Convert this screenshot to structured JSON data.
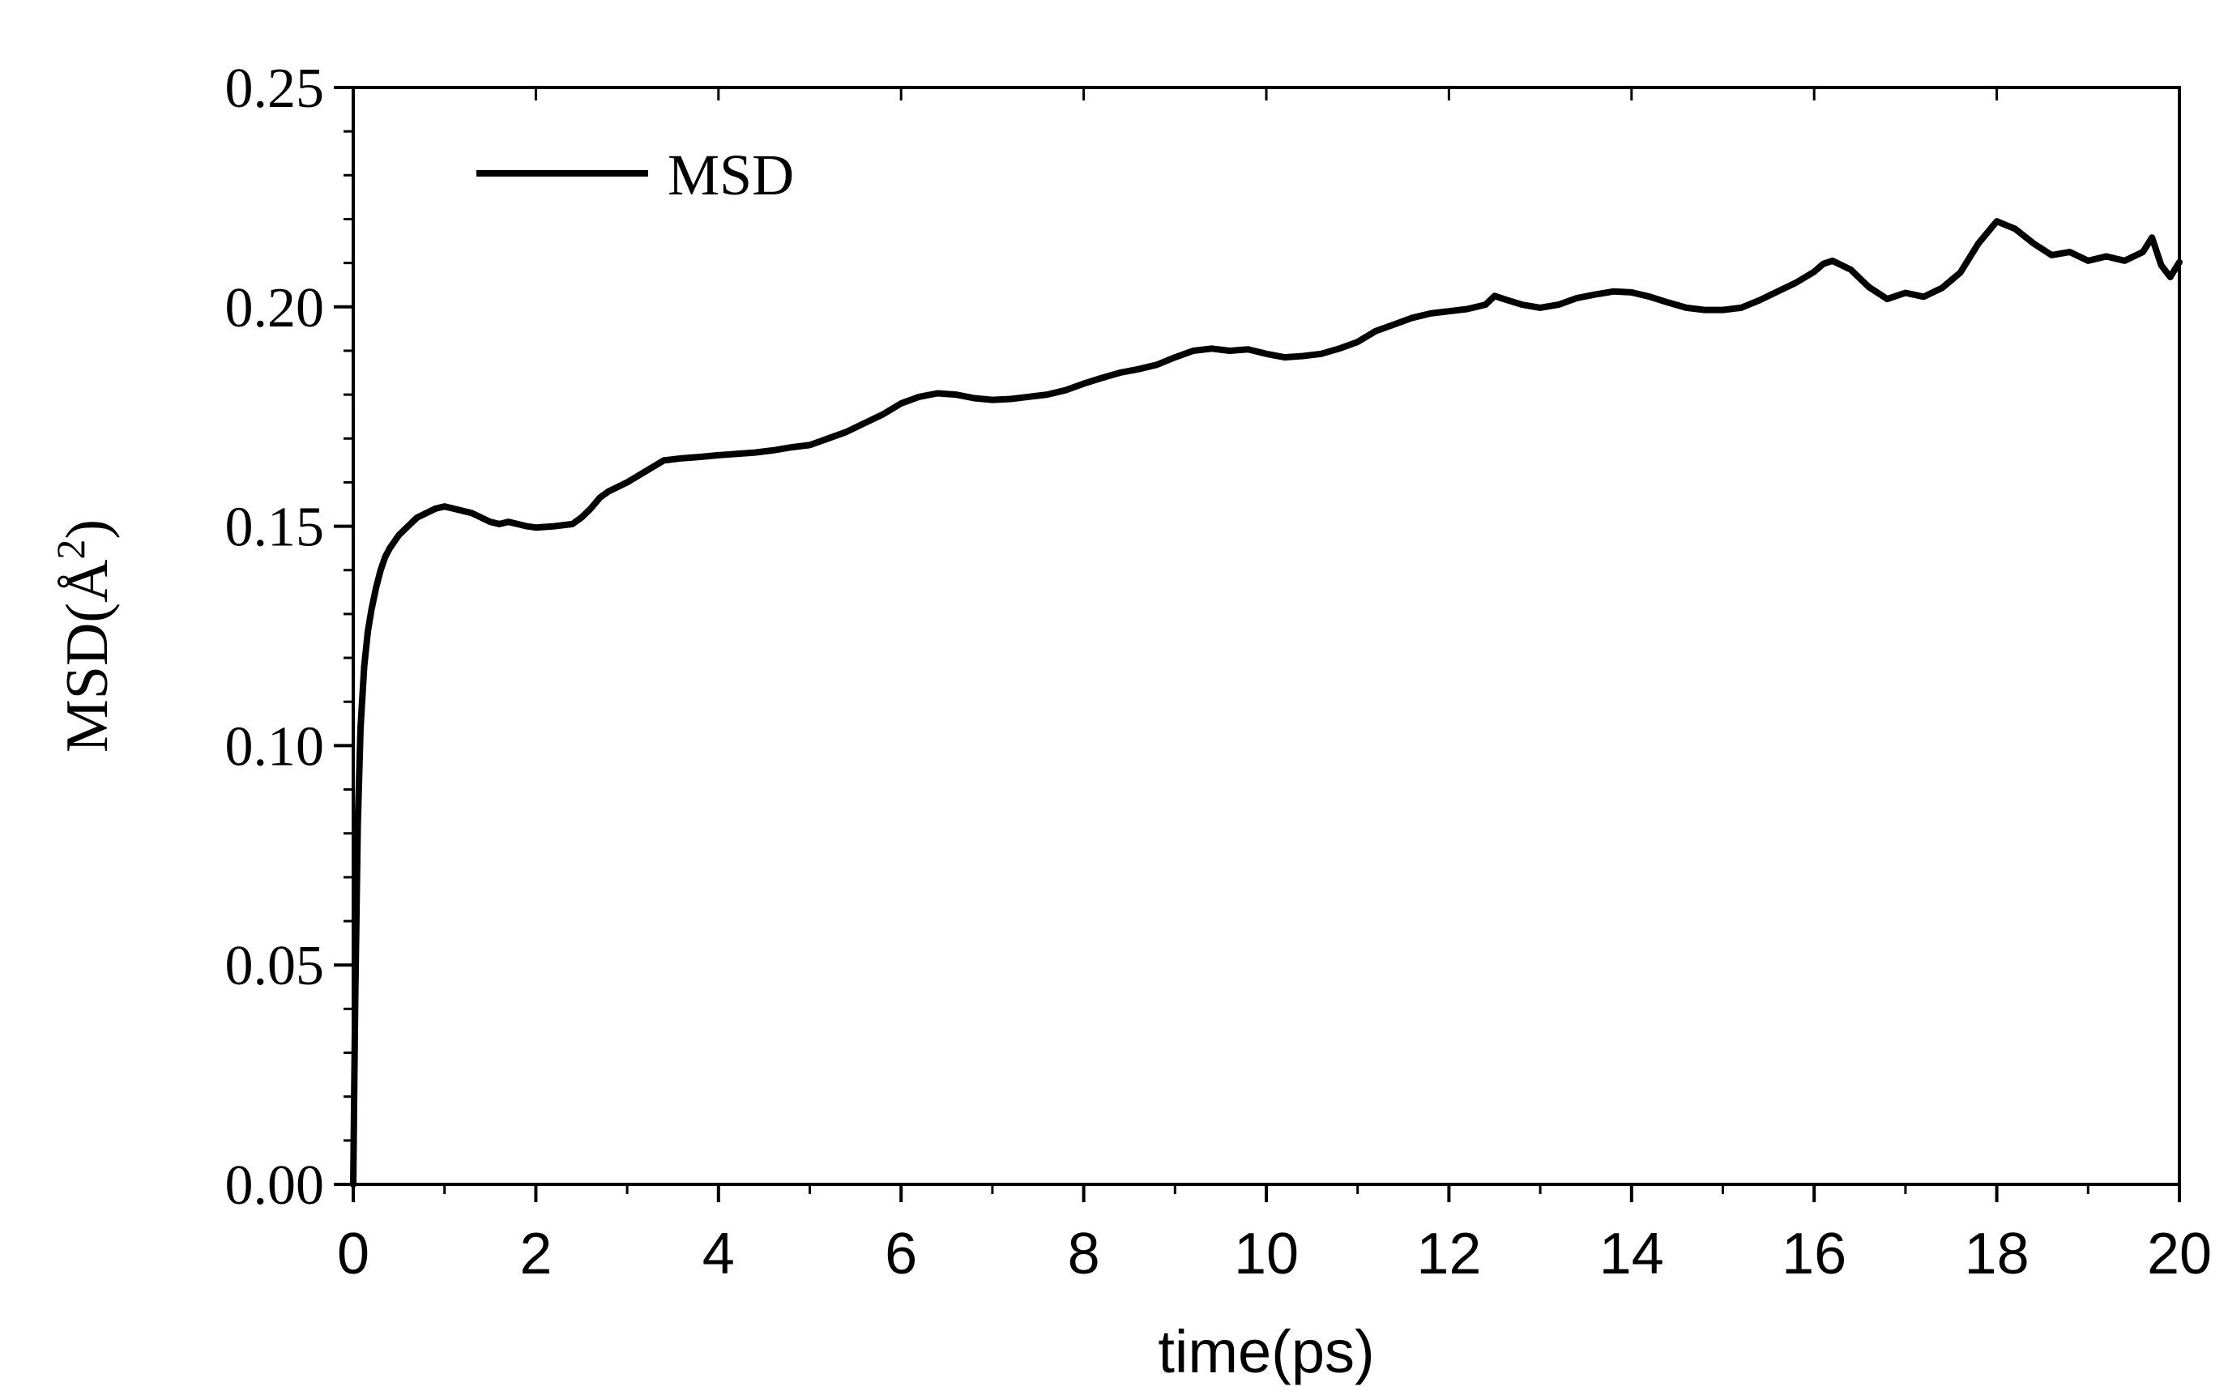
{
  "chart_data": {
    "type": "line",
    "xlabel": "time(ps)",
    "ylabel": "MSD(Å²)",
    "ylabel_main": "MSD(Å",
    "ylabel_sup": "2",
    "ylabel_close": ")",
    "xlim": [
      0,
      20
    ],
    "ylim": [
      0.0,
      0.25
    ],
    "x_ticks": [
      0,
      2,
      4,
      6,
      8,
      10,
      12,
      14,
      16,
      18,
      20
    ],
    "x_tick_labels": [
      "0",
      "2",
      "4",
      "6",
      "8",
      "10",
      "12",
      "14",
      "16",
      "18",
      "20"
    ],
    "y_ticks": [
      0.0,
      0.05,
      0.1,
      0.15,
      0.2,
      0.25
    ],
    "y_tick_labels": [
      "0.00",
      "0.05",
      "0.10",
      "0.15",
      "0.20",
      "0.25"
    ],
    "grid": false,
    "legend_position": "top-left",
    "line_color": "#000000",
    "series": [
      {
        "name": "MSD",
        "x": [
          0,
          0.02,
          0.05,
          0.08,
          0.12,
          0.16,
          0.2,
          0.25,
          0.3,
          0.35,
          0.4,
          0.5,
          0.6,
          0.7,
          0.8,
          0.9,
          1.0,
          1.1,
          1.2,
          1.3,
          1.4,
          1.5,
          1.6,
          1.7,
          1.8,
          1.9,
          2.0,
          2.2,
          2.4,
          2.5,
          2.6,
          2.7,
          2.8,
          3.0,
          3.2,
          3.4,
          3.6,
          3.8,
          4.0,
          4.2,
          4.4,
          4.6,
          4.8,
          5.0,
          5.2,
          5.4,
          5.6,
          5.8,
          6.0,
          6.2,
          6.4,
          6.6,
          6.8,
          7.0,
          7.2,
          7.4,
          7.6,
          7.8,
          8.0,
          8.2,
          8.4,
          8.6,
          8.8,
          9.0,
          9.2,
          9.4,
          9.6,
          9.8,
          10.0,
          10.2,
          10.4,
          10.6,
          10.8,
          11.0,
          11.2,
          11.4,
          11.6,
          11.8,
          12.0,
          12.2,
          12.4,
          12.5,
          12.6,
          12.8,
          13.0,
          13.2,
          13.4,
          13.6,
          13.8,
          14.0,
          14.2,
          14.4,
          14.6,
          14.8,
          15.0,
          15.2,
          15.4,
          15.6,
          15.8,
          16.0,
          16.1,
          16.2,
          16.4,
          16.6,
          16.8,
          17.0,
          17.2,
          17.4,
          17.6,
          17.8,
          18.0,
          18.2,
          18.4,
          18.6,
          18.8,
          19.0,
          19.2,
          19.4,
          19.6,
          19.7,
          19.8,
          19.9,
          20.0
        ],
        "values": [
          0.0,
          0.04,
          0.082,
          0.104,
          0.118,
          0.126,
          0.131,
          0.136,
          0.14,
          0.143,
          0.145,
          0.148,
          0.15,
          0.152,
          0.153,
          0.154,
          0.1545,
          0.154,
          0.1535,
          0.153,
          0.152,
          0.151,
          0.1505,
          0.151,
          0.1505,
          0.15,
          0.1497,
          0.15,
          0.1505,
          0.152,
          0.154,
          0.1565,
          0.158,
          0.16,
          0.1625,
          0.165,
          0.1655,
          0.1658,
          0.1662,
          0.1665,
          0.1668,
          0.1673,
          0.168,
          0.1685,
          0.17,
          0.1715,
          0.1735,
          0.1755,
          0.178,
          0.1795,
          0.1803,
          0.18,
          0.1792,
          0.1788,
          0.179,
          0.1795,
          0.18,
          0.181,
          0.1825,
          0.1838,
          0.185,
          0.1858,
          0.1868,
          0.1885,
          0.19,
          0.1905,
          0.19,
          0.1903,
          0.1893,
          0.1885,
          0.1888,
          0.1893,
          0.1905,
          0.192,
          0.1945,
          0.196,
          0.1975,
          0.1985,
          0.199,
          0.1995,
          0.2005,
          0.2025,
          0.2018,
          0.2005,
          0.1998,
          0.2005,
          0.202,
          0.2028,
          0.2035,
          0.2033,
          0.2023,
          0.201,
          0.1998,
          0.1993,
          0.1993,
          0.1998,
          0.2015,
          0.2035,
          0.2055,
          0.208,
          0.2098,
          0.2105,
          0.2085,
          0.2045,
          0.2018,
          0.2032,
          0.2023,
          0.2043,
          0.2078,
          0.2145,
          0.2195,
          0.2178,
          0.2145,
          0.2118,
          0.2125,
          0.2105,
          0.2115,
          0.2105,
          0.2125,
          0.2158,
          0.2095,
          0.2068,
          0.2102
        ]
      }
    ]
  }
}
